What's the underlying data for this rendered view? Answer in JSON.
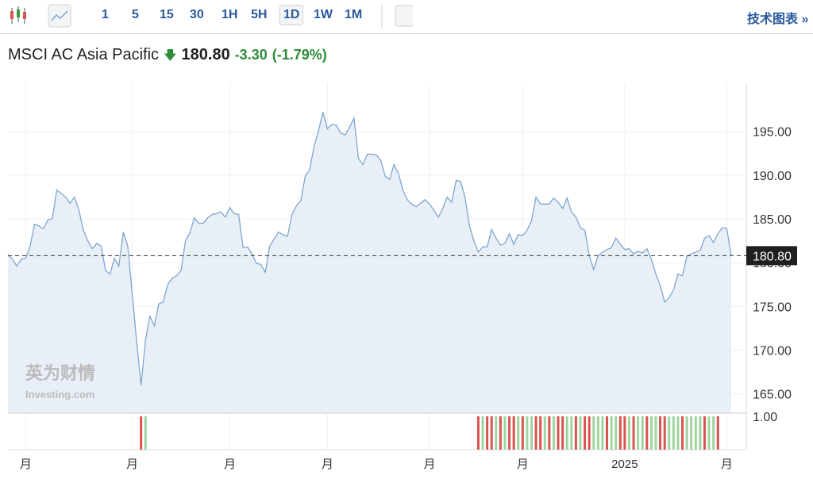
{
  "toolbar": {
    "intervals": [
      "1",
      "5",
      "15",
      "30",
      "1H",
      "5H",
      "1D",
      "1W",
      "1M"
    ],
    "selected": "1D",
    "link": "技术图表 »"
  },
  "header": {
    "name": "MSCI AC Asia Pacific",
    "change": "-3.30",
    "change_pct": "(-1.79%)"
  },
  "watermark": {
    "brand": "英为财情",
    "site": "Investing.com"
  },
  "chart_data": {
    "type": "area",
    "values": [
      180.9,
      180.4,
      179.6,
      180.4,
      180.5,
      181.9,
      184.4,
      184.2,
      183.9,
      184.9,
      185.0,
      188.3,
      187.9,
      187.5,
      186.8,
      187.5,
      186.0,
      183.7,
      182.5,
      181.6,
      182.2,
      181.9,
      179.1,
      178.7,
      180.5,
      179.6,
      183.5,
      181.9,
      176.5,
      171.0,
      166.0,
      171.2,
      173.9,
      172.8,
      175.3,
      175.5,
      177.5,
      178.2,
      178.5,
      179.1,
      182.5,
      183.4,
      185.1,
      184.5,
      184.5,
      185.1,
      185.5,
      185.6,
      185.8,
      185.2,
      186.3,
      185.6,
      185.5,
      181.7,
      181.8,
      181.0,
      179.9,
      179.8,
      178.9,
      181.9,
      182.7,
      183.5,
      183.2,
      183.0,
      185.5,
      186.5,
      187.1,
      189.9,
      190.6,
      193.3,
      195.1,
      197.2,
      195.3,
      195.8,
      195.7,
      194.8,
      194.6,
      195.5,
      196.5,
      191.9,
      191.2,
      192.4,
      192.4,
      192.3,
      191.7,
      189.9,
      189.5,
      191.2,
      190.2,
      188.3,
      187.2,
      186.7,
      186.4,
      186.8,
      187.2,
      186.7,
      186.0,
      185.2,
      186.2,
      187.5,
      186.9,
      189.4,
      189.3,
      187.5,
      184.2,
      182.5,
      181.2,
      181.8,
      181.8,
      183.8,
      182.8,
      182.0,
      182.2,
      183.3,
      182.1,
      183.2,
      183.1,
      183.7,
      184.8,
      187.5,
      186.7,
      186.7,
      186.7,
      187.4,
      186.9,
      186.2,
      187.4,
      185.8,
      185.2,
      184.0,
      183.7,
      180.8,
      179.2,
      180.8,
      181.2,
      181.5,
      181.7,
      182.8,
      182.1,
      181.5,
      181.6,
      181.0,
      181.3,
      181.1,
      181.6,
      180.4,
      178.7,
      177.4,
      175.5,
      176.0,
      176.9,
      178.7,
      178.5,
      180.7,
      181.0,
      181.2,
      181.4,
      182.8,
      183.1,
      182.3,
      183.3,
      184.0,
      183.9,
      180.8
    ],
    "color": "#7ea6d0",
    "fill": "#e9eff7",
    "ylim": [
      162.8,
      200.5
    ],
    "yticks": [
      {
        "value": 165,
        "label": "165.00"
      },
      {
        "value": 170,
        "label": "170.00"
      },
      {
        "value": 175,
        "label": "175.00"
      },
      {
        "value": 180,
        "label": "180.00"
      },
      {
        "value": 185,
        "label": "185.00"
      },
      {
        "value": 190,
        "label": "190.00"
      },
      {
        "value": 195,
        "label": "195.00"
      }
    ],
    "last": {
      "value": 180.8,
      "label": "180.80"
    },
    "xticks": [
      {
        "value": 4,
        "label": "月"
      },
      {
        "value": 28,
        "label": "月"
      },
      {
        "value": 50,
        "label": "月"
      },
      {
        "value": 72,
        "label": "月"
      },
      {
        "value": 95,
        "label": "月"
      },
      {
        "value": 116,
        "label": "月"
      },
      {
        "value": 139,
        "label": "2025"
      },
      {
        "value": 162,
        "label": "月"
      }
    ],
    "grid": true,
    "volume": {
      "ylim": [
        0,
        1.07
      ],
      "yticks": [
        {
          "value": 1,
          "label": "1.00"
        }
      ],
      "values": [
        null,
        null,
        null,
        null,
        null,
        null,
        null,
        null,
        null,
        null,
        null,
        null,
        null,
        null,
        null,
        null,
        null,
        null,
        null,
        null,
        null,
        null,
        null,
        null,
        null,
        null,
        null,
        null,
        null,
        null,
        1,
        1,
        null,
        null,
        null,
        null,
        null,
        null,
        null,
        null,
        null,
        null,
        null,
        null,
        null,
        null,
        null,
        null,
        null,
        null,
        null,
        null,
        null,
        null,
        null,
        null,
        null,
        null,
        null,
        null,
        null,
        null,
        null,
        null,
        null,
        null,
        null,
        null,
        null,
        null,
        null,
        null,
        null,
        null,
        null,
        null,
        null,
        null,
        null,
        null,
        null,
        null,
        null,
        null,
        null,
        null,
        null,
        null,
        null,
        null,
        null,
        null,
        null,
        null,
        null,
        null,
        null,
        null,
        null,
        null,
        null,
        null,
        null,
        null,
        null,
        null,
        1,
        1,
        1,
        1,
        1,
        1,
        1,
        1,
        1,
        1,
        1,
        1,
        1,
        1,
        1,
        1,
        1,
        1,
        1,
        1,
        1,
        1,
        1,
        1,
        1,
        1,
        1,
        1,
        1,
        1,
        1,
        1,
        1,
        1,
        1,
        1,
        1,
        1,
        1,
        1,
        1,
        1,
        1,
        1,
        1,
        1,
        1,
        1,
        1,
        1,
        1,
        1,
        1,
        1,
        1,
        null,
        null,
        null
      ],
      "colors": [
        "#d9534f",
        "#9fd49f",
        "#d9534f",
        "#9fd49f",
        "#d9534f",
        "#d9534f",
        "#9fd49f",
        "#d9534f",
        "#9fd49f",
        "#d9534f",
        "#d9534f",
        "#9fd49f",
        "#d9534f",
        "#9fd49f",
        "#9fd49f",
        "#d9534f",
        "#d9534f",
        "#9fd49f",
        "#d9534f",
        "#9fd49f",
        "#d9534f",
        "#d9534f",
        "#9fd49f",
        "#9fd49f",
        "#d9534f",
        "#9fd49f",
        "#d9534f",
        "#d9534f",
        "#9fd49f",
        "#9fd49f",
        "#9fd49f",
        "#d9534f",
        "#9fd49f",
        "#9fd49f",
        "#d9534f",
        "#d9534f",
        "#9fd49f",
        "#d9534f",
        "#9fd49f",
        "#9fd49f",
        "#d9534f",
        "#9fd49f",
        "#9fd49f",
        "#d9534f",
        "#d9534f",
        "#9fd49f",
        "#9fd49f",
        "#9fd49f",
        "#d9534f",
        "#9fd49f",
        "#9fd49f",
        "#9fd49f",
        "#9fd49f",
        "#d9534f",
        "#9fd49f",
        "#9fd49f",
        "#d9534f"
      ]
    }
  }
}
